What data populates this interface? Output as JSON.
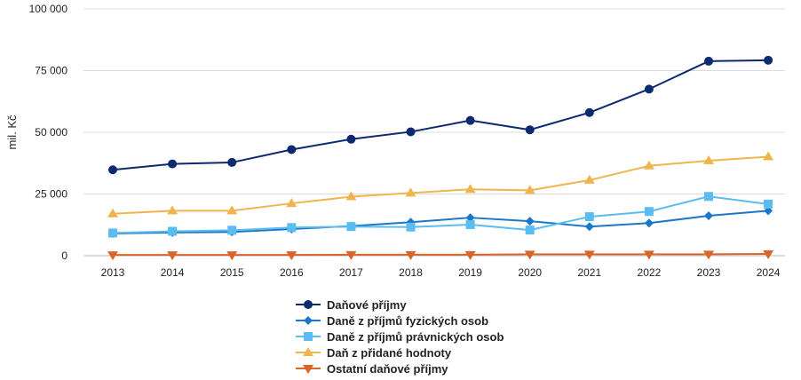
{
  "chart_data": {
    "type": "line",
    "xlabel": "",
    "ylabel": "mil. Kč",
    "categories": [
      "2013",
      "2014",
      "2015",
      "2016",
      "2017",
      "2018",
      "2019",
      "2020",
      "2021",
      "2022",
      "2023",
      "2024"
    ],
    "ylim": [
      0,
      100000
    ],
    "yticks": [
      0,
      25000,
      50000,
      75000,
      100000
    ],
    "ytick_labels": [
      "0",
      "25 000",
      "50 000",
      "75 000",
      "100 000"
    ],
    "grid": true,
    "legend_position": "bottom",
    "series": [
      {
        "name": "Daňové příjmy",
        "color": "#0b2a6f",
        "marker": "circle",
        "values": [
          34800,
          37200,
          37800,
          43000,
          47200,
          50200,
          54800,
          51000,
          58000,
          67500,
          78800,
          79200
        ]
      },
      {
        "name": "Daně z příjmů fyzických osob",
        "color": "#1a77c9",
        "marker": "diamond",
        "values": [
          9000,
          9400,
          9600,
          10800,
          12000,
          13600,
          15400,
          14000,
          11800,
          13200,
          16200,
          18200
        ]
      },
      {
        "name": "Daně z příjmů právnických osob",
        "color": "#5bbcef",
        "marker": "square",
        "values": [
          9200,
          9900,
          10300,
          11400,
          11800,
          11600,
          12600,
          10400,
          15800,
          17900,
          24000,
          20900
        ]
      },
      {
        "name": "Daň z přidané hodnoty",
        "color": "#f0b44c",
        "marker": "triangle-up",
        "values": [
          17000,
          18200,
          18200,
          21200,
          23900,
          25400,
          26900,
          26500,
          30600,
          36400,
          38500,
          40100
        ]
      },
      {
        "name": "Ostatní daňové příjmy",
        "color": "#d9652b",
        "marker": "triangle-down",
        "values": [
          300,
          300,
          300,
          300,
          400,
          400,
          400,
          600,
          600,
          600,
          600,
          700
        ]
      }
    ]
  }
}
